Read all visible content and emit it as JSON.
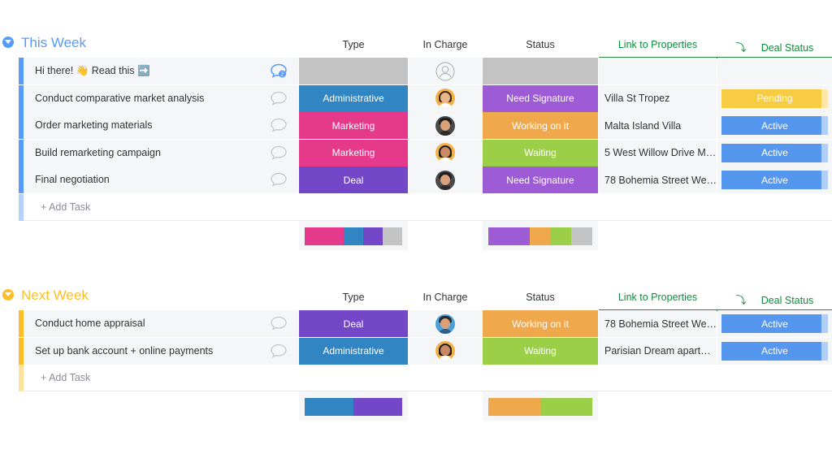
{
  "columns": {
    "type": "Type",
    "in_charge": "In Charge",
    "status": "Status",
    "link": "Link to Properties",
    "deal_status": "Deal Status"
  },
  "colors": {
    "administrative": "#3185c2",
    "marketing": "#e5398b",
    "deal": "#7446c8",
    "need_signature": "#9e5bd6",
    "working_on_it": "#f0a84d",
    "waiting": "#9bcf47",
    "pending": "#f7cc43",
    "active": "#5597ee",
    "empty_gray": "#c4c4c4",
    "this_week": "#579bfc",
    "next_week": "#fdbe29"
  },
  "groups": [
    {
      "title": "This Week",
      "add_task": "+ Add Task",
      "rows": [
        {
          "name": "Hi there! 👋 Read this ➡️",
          "chat_count": "2",
          "type": "",
          "status": "",
          "property": "",
          "deal_status": "",
          "avatar": "empty"
        },
        {
          "name": "Conduct comparative market analysis",
          "type": "Administrative",
          "status": "Need Signature",
          "property": "Villa St Tropez",
          "deal_status": "Pending",
          "avatar": "woman-blonde"
        },
        {
          "name": "Order marketing materials",
          "type": "Marketing",
          "status": "Working on it",
          "property": "Malta Island Villa",
          "deal_status": "Active",
          "avatar": "man-dark"
        },
        {
          "name": "Build remarketing campaign",
          "type": "Marketing",
          "status": "Waiting",
          "property": "5 West Willow Drive M…",
          "deal_status": "Active",
          "avatar": "woman-dark"
        },
        {
          "name": "Final negotiation",
          "type": "Deal",
          "status": "Need Signature",
          "property": "78 Bohemia Street We…",
          "deal_status": "Active",
          "avatar": "man-dark"
        }
      ]
    },
    {
      "title": "Next Week",
      "add_task": "+ Add Task",
      "rows": [
        {
          "name": "Conduct home appraisal",
          "type": "Deal",
          "status": "Working on it",
          "property": "78 Bohemia Street We…",
          "deal_status": "Active",
          "avatar": "man-blue"
        },
        {
          "name": "Set up bank account + online payments",
          "type": "Administrative",
          "status": "Waiting",
          "property": "Parisian Dream apart…",
          "deal_status": "Active",
          "avatar": "woman-dark"
        }
      ]
    }
  ]
}
